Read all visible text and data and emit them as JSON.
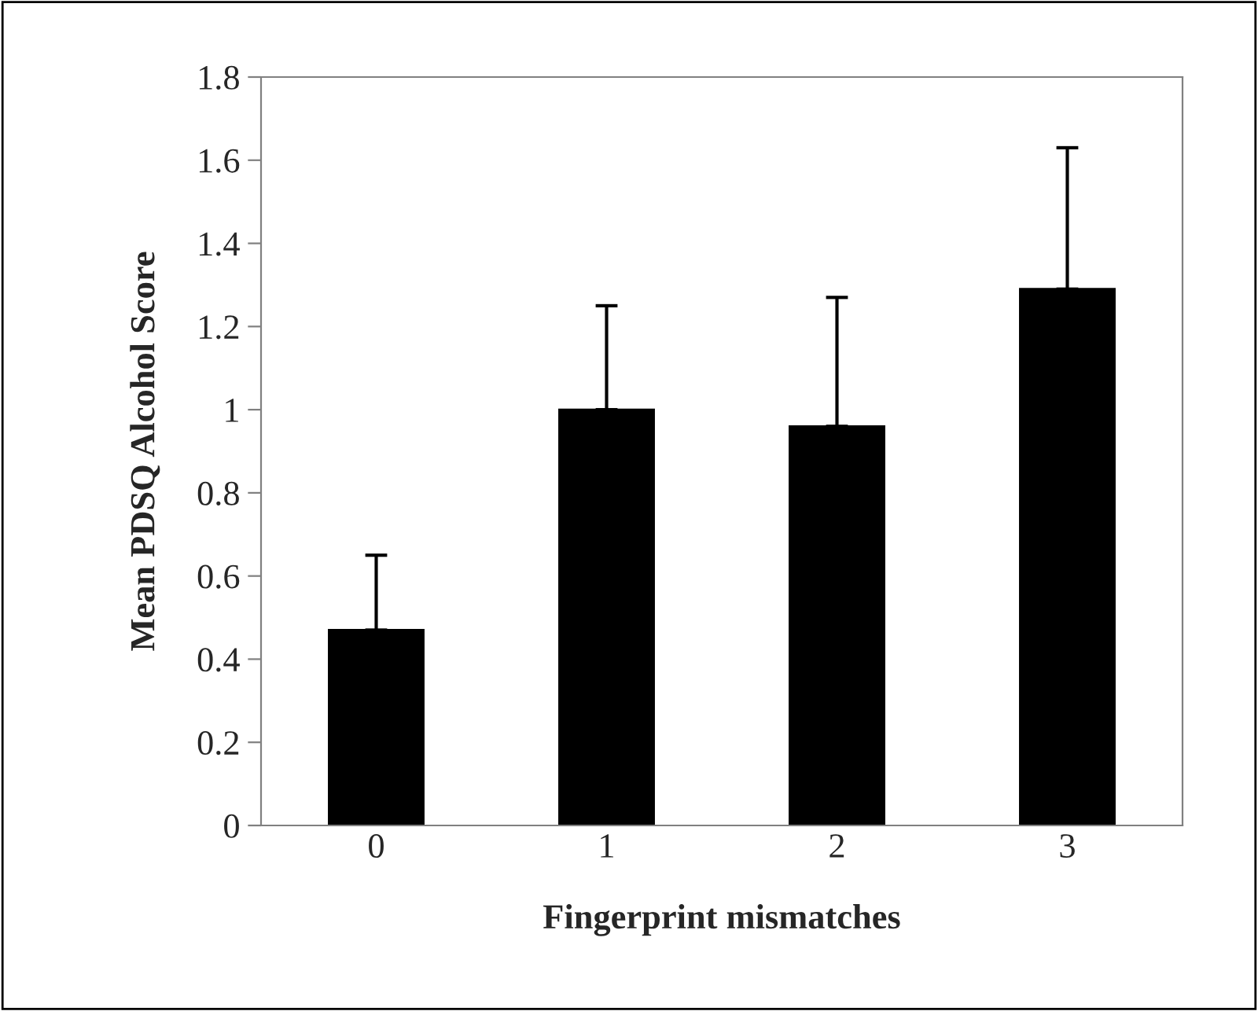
{
  "chart_data": {
    "type": "bar",
    "xlabel": "Fingerprint mismatches",
    "ylabel": "Mean PDSQ Alcohol Score",
    "categories": [
      "0",
      "1",
      "2",
      "3"
    ],
    "values": [
      0.47,
      1.0,
      0.96,
      1.29
    ],
    "errors": [
      [
        0.47,
        0.65
      ],
      [
        1.0,
        1.25
      ],
      [
        0.96,
        1.27
      ],
      [
        1.29,
        1.63
      ]
    ],
    "color": "#000000",
    "ylim": [
      0,
      1.8
    ],
    "yticks": [
      0,
      0.2,
      0.4,
      0.6,
      0.8,
      1,
      1.2,
      1.4,
      1.6,
      1.8
    ],
    "grid": false
  }
}
